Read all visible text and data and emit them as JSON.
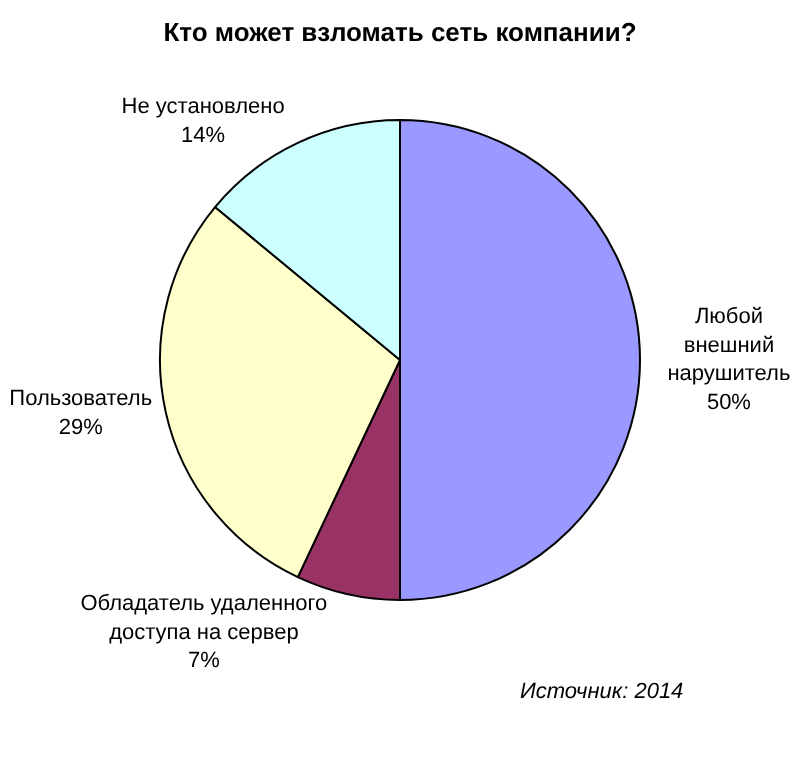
{
  "chart_data": {
    "type": "pie",
    "title": "Кто может взломать сеть компании?",
    "categories": [
      "Любой\nвнешний\nнарушитель",
      "Обладатель удаленного\nдоступа на сервер",
      "Пользователь",
      "Не установлено"
    ],
    "values": [
      50,
      7,
      29,
      14
    ],
    "value_labels": [
      "50%",
      "7%",
      "29%",
      "14%"
    ],
    "colors": [
      "#9999ff",
      "#993366",
      "#ffffcc",
      "#ccffff"
    ],
    "annotations": [
      "Источник: 2014"
    ],
    "legend": false
  }
}
